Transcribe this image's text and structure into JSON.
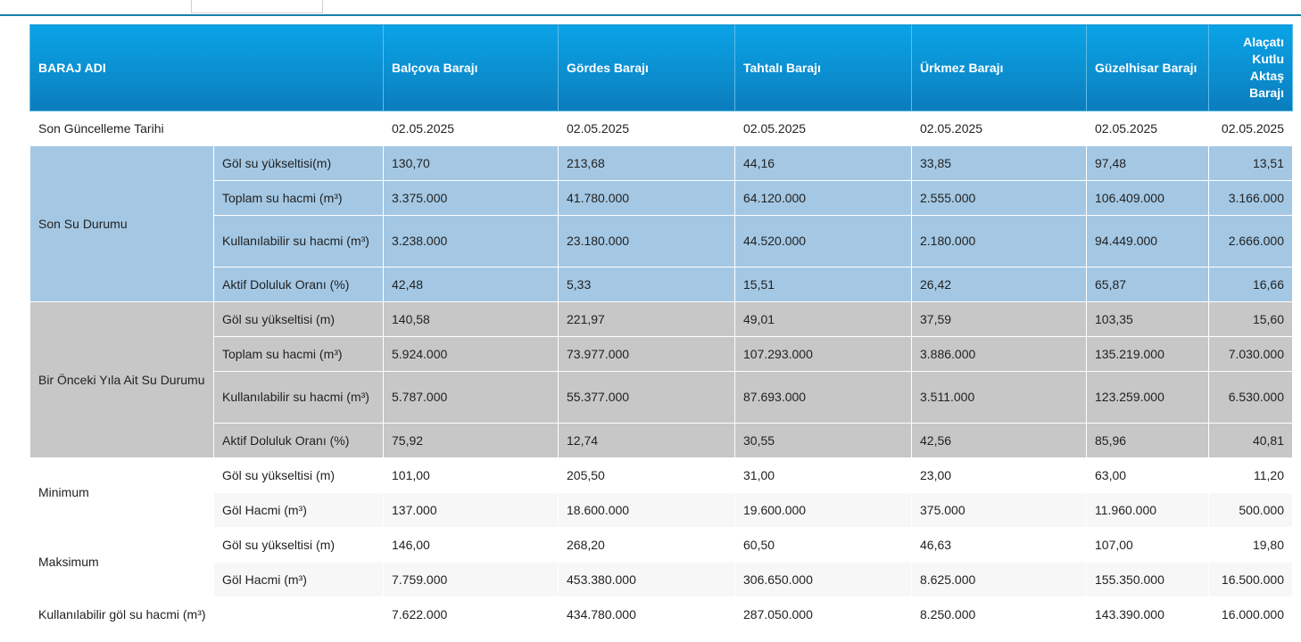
{
  "header": {
    "label": "BARAJ ADI",
    "dams": [
      "Balçova Barajı",
      "Gördes Barajı",
      "Tahtalı Barajı",
      "Ürkmez Barajı",
      "Güzelhisar Barajı",
      "Alaçatı Kutlu Aktaş Barajı"
    ]
  },
  "update_row": {
    "label": "Son Güncelleme Tarihi",
    "values": [
      "02.05.2025",
      "02.05.2025",
      "02.05.2025",
      "02.05.2025",
      "02.05.2025",
      "02.05.2025"
    ]
  },
  "current": {
    "group_label": "Son Su Durumu",
    "rows": [
      {
        "label": "Göl su yükseltisi(m)",
        "values": [
          "130,70",
          "213,68",
          "44,16",
          "33,85",
          "97,48",
          "13,51"
        ]
      },
      {
        "label": "Toplam su hacmi (m³)",
        "values": [
          "3.375.000",
          "41.780.000",
          "64.120.000",
          "2.555.000",
          "106.409.000",
          "3.166.000"
        ]
      },
      {
        "label": "Kullanılabilir su hacmi (m³)",
        "values": [
          "3.238.000",
          "23.180.000",
          "44.520.000",
          "2.180.000",
          "94.449.000",
          "2.666.000"
        ]
      },
      {
        "label": "Aktif Doluluk Oranı (%)",
        "values": [
          "42,48",
          "5,33",
          "15,51",
          "26,42",
          "65,87",
          "16,66"
        ]
      }
    ]
  },
  "previous": {
    "group_label": "Bir Önceki Yıla Ait Su Durumu",
    "rows": [
      {
        "label": "Göl su yükseltisi (m)",
        "values": [
          "140,58",
          "221,97",
          "49,01",
          "37,59",
          "103,35",
          "15,60"
        ]
      },
      {
        "label": "Toplam su hacmi (m³)",
        "values": [
          "5.924.000",
          "73.977.000",
          "107.293.000",
          "3.886.000",
          "135.219.000",
          "7.030.000"
        ]
      },
      {
        "label": "Kullanılabilir su hacmi (m³)",
        "values": [
          "5.787.000",
          "55.377.000",
          "87.693.000",
          "3.511.000",
          "123.259.000",
          "6.530.000"
        ]
      },
      {
        "label": "Aktif Doluluk Oranı (%)",
        "values": [
          "75,92",
          "12,74",
          "30,55",
          "42,56",
          "85,96",
          "40,81"
        ]
      }
    ]
  },
  "minimum": {
    "group_label": "Minimum",
    "rows": [
      {
        "label": "Göl su yükseltisi (m)",
        "values": [
          "101,00",
          "205,50",
          "31,00",
          "23,00",
          "63,00",
          "11,20"
        ]
      },
      {
        "label": "Göl Hacmi (m³)",
        "values": [
          "137.000",
          "18.600.000",
          "19.600.000",
          "375.000",
          "11.960.000",
          "500.000"
        ]
      }
    ]
  },
  "maximum": {
    "group_label": "Maksimum",
    "rows": [
      {
        "label": "Göl su yükseltisi (m)",
        "values": [
          "146,00",
          "268,20",
          "60,50",
          "46,63",
          "107,00",
          "19,80"
        ]
      },
      {
        "label": "Göl Hacmi (m³)",
        "values": [
          "7.759.000",
          "453.380.000",
          "306.650.000",
          "8.625.000",
          "155.350.000",
          "16.500.000"
        ]
      }
    ]
  },
  "usable_total": {
    "label": "Kullanılabilir göl su hacmi (m³)",
    "values": [
      "7.622.000",
      "434.780.000",
      "287.050.000",
      "8.250.000",
      "143.390.000",
      "16.000.000"
    ]
  }
}
